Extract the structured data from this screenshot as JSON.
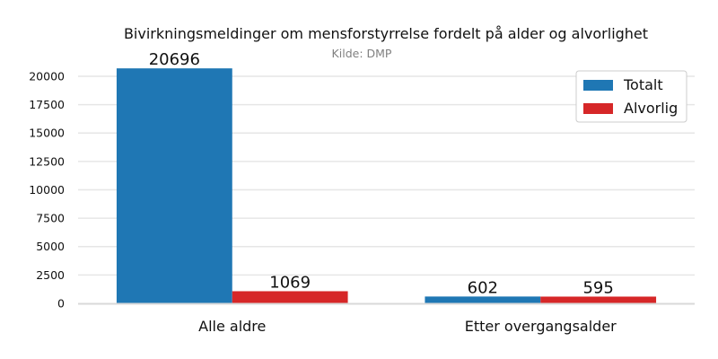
{
  "chart_data": {
    "type": "bar",
    "title": "Bivirkningsmeldinger om mensforstyrrelse fordelt på alder og alvorlighet",
    "subtitle": "Kilde: DMP",
    "xlabel": "",
    "ylabel": "",
    "categories": [
      "Alle aldre",
      "Etter overgangsalder"
    ],
    "series": [
      {
        "name": "Totalt",
        "values": [
          20696,
          602
        ],
        "color": "#1f77b4"
      },
      {
        "name": "Alvorlig",
        "values": [
          1069,
          595
        ],
        "color": "#d62728"
      }
    ],
    "ylim": [
      0,
      21500
    ],
    "yticks": [
      0,
      2500,
      5000,
      7500,
      10000,
      12500,
      15000,
      17500,
      20000
    ],
    "grid": true,
    "legend": "top-right",
    "data_labels": true
  }
}
